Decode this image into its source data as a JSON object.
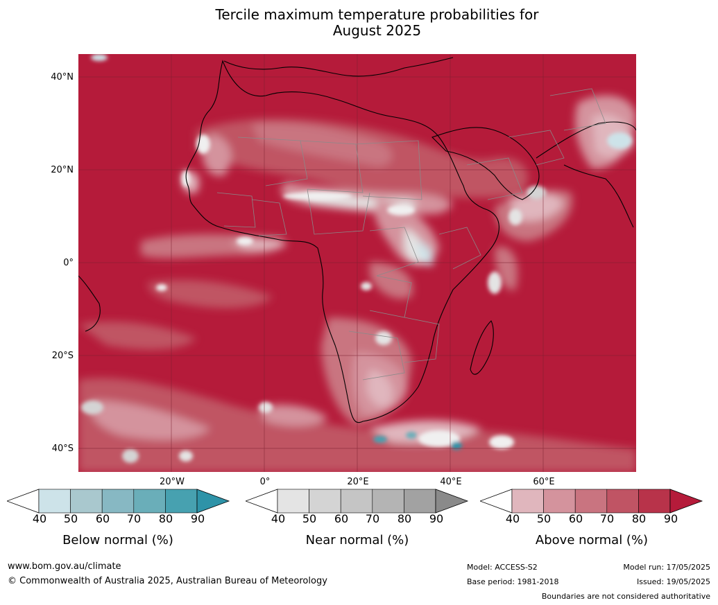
{
  "title": {
    "line1": "Tercile maximum temperature probabilities for",
    "line2": "August 2025"
  },
  "map": {
    "region": "Africa",
    "lat_labels": [
      "40°N",
      "20°N",
      "0°",
      "20°S",
      "40°S"
    ],
    "lon_labels": [
      "20°W",
      "0°",
      "20°E",
      "40°E",
      "60°E"
    ],
    "base_color": "#b51b3a"
  },
  "legend": {
    "ticks": [
      "40",
      "50",
      "60",
      "70",
      "80",
      "90"
    ],
    "below": {
      "label": "Below normal (%)",
      "colors": [
        "#cde3e9",
        "#a9c8ce",
        "#87b8c3",
        "#6aaeb9",
        "#47a1b0",
        "#2e93a8"
      ]
    },
    "near": {
      "label": "Near normal (%)",
      "colors": [
        "#e4e4e4",
        "#d4d4d4",
        "#c5c5c5",
        "#b4b4b4",
        "#a2a2a2",
        "#8a8a8a"
      ]
    },
    "above": {
      "label": "Above normal (%)",
      "colors": [
        "#e0b6bd",
        "#d4939d",
        "#c97480",
        "#c05464",
        "#b8334a",
        "#b51b3a"
      ]
    }
  },
  "footer": {
    "url": "www.bom.gov.au/climate",
    "copyright": "© Commonwealth of Australia 2025, Australian Bureau of Meteorology",
    "model": "Model: ACCESS-S2",
    "base_period": "Base period: 1981-2018",
    "model_run": "Model run: 17/05/2025",
    "issued": "Issued: 19/05/2025",
    "disclaimer": "Boundaries are not considered authoritative"
  }
}
